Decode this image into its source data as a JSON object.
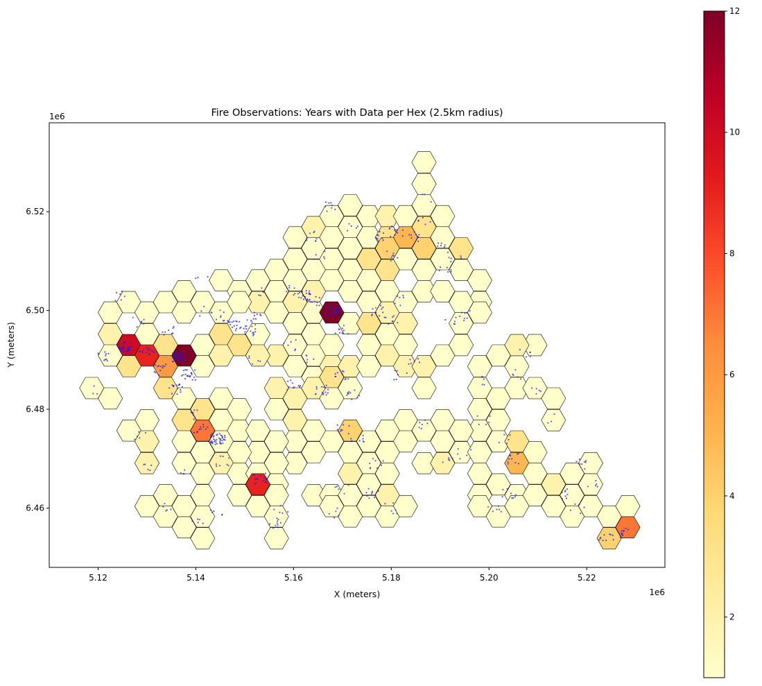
{
  "chart_data": {
    "type": "heatmap",
    "subtype": "hexbin-map",
    "title": "Fire Observations: Years with Data per Hex (2.5km radius)",
    "xlabel": "X (meters)",
    "ylabel": "Y (meters)",
    "x_offset_label": "1e6",
    "y_offset_label": "1e6",
    "xlim": [
      5.11,
      5.236
    ],
    "ylim": [
      6.448,
      6.538
    ],
    "x_ticks": [
      5.12,
      5.14,
      5.16,
      5.18,
      5.2,
      5.22
    ],
    "x_tick_labels": [
      "5.12",
      "5.14",
      "5.16",
      "5.18",
      "5.20",
      "5.22"
    ],
    "y_ticks": [
      6.46,
      6.48,
      6.5,
      6.52
    ],
    "y_tick_labels": [
      "6.46",
      "6.48",
      "6.50",
      "6.52"
    ],
    "grid": false,
    "hex_radius_km": 2.5,
    "colormap": "YlOrRd",
    "colorbar": {
      "range": [
        1,
        12
      ],
      "ticks": [
        2,
        4,
        6,
        8,
        10,
        12
      ],
      "tick_labels": [
        "2",
        "4",
        "6",
        "8",
        "10",
        "12"
      ]
    },
    "point_color": "#1a1aff",
    "edge_color": "#000000",
    "hexes": [
      [
        5.1867,
        6.53,
        1
      ],
      [
        5.1867,
        6.5256,
        1
      ],
      [
        5.1867,
        6.5213,
        1
      ],
      [
        5.1716,
        6.5213,
        1
      ],
      [
        5.1678,
        6.5191,
        1
      ],
      [
        5.1754,
        6.5191,
        1
      ],
      [
        5.1792,
        6.5191,
        2
      ],
      [
        5.1829,
        6.5191,
        1
      ],
      [
        5.1867,
        6.5169,
        3
      ],
      [
        5.1905,
        6.5191,
        1
      ],
      [
        5.1641,
        6.5169,
        2
      ],
      [
        5.1716,
        6.5169,
        1
      ],
      [
        5.1754,
        6.5148,
        1
      ],
      [
        5.1792,
        6.5148,
        3
      ],
      [
        5.1829,
        6.5148,
        5
      ],
      [
        5.1905,
        6.5148,
        1
      ],
      [
        5.1603,
        6.5148,
        1
      ],
      [
        5.1641,
        6.5126,
        1
      ],
      [
        5.1678,
        6.5148,
        1
      ],
      [
        5.1716,
        6.5126,
        1
      ],
      [
        5.1754,
        6.5104,
        3
      ],
      [
        5.1792,
        6.5126,
        4
      ],
      [
        5.1829,
        6.5104,
        1
      ],
      [
        5.1867,
        6.5126,
        4
      ],
      [
        5.1905,
        6.5104,
        1
      ],
      [
        5.1943,
        6.5126,
        3
      ],
      [
        5.1603,
        6.5104,
        1
      ],
      [
        5.1641,
        6.5082,
        1
      ],
      [
        5.1678,
        6.5104,
        1
      ],
      [
        5.1716,
        6.5082,
        1
      ],
      [
        5.1792,
        6.5082,
        3
      ],
      [
        5.1867,
        6.5082,
        1
      ],
      [
        5.1943,
        6.5082,
        1
      ],
      [
        5.1981,
        6.5061,
        1
      ],
      [
        5.1527,
        6.5061,
        1
      ],
      [
        5.1565,
        6.5082,
        1
      ],
      [
        5.1603,
        6.5061,
        1
      ],
      [
        5.1641,
        6.5039,
        2
      ],
      [
        5.1678,
        6.5061,
        1
      ],
      [
        5.1716,
        6.5039,
        1
      ],
      [
        5.1754,
        6.5061,
        1
      ],
      [
        5.1792,
        6.5039,
        1
      ],
      [
        5.1867,
        6.5039,
        1
      ],
      [
        5.1905,
        6.5039,
        1
      ],
      [
        5.1981,
        6.5017,
        1
      ],
      [
        5.1376,
        6.5039,
        1
      ],
      [
        5.1452,
        6.5061,
        1
      ],
      [
        5.1489,
        6.5039,
        1
      ],
      [
        5.1527,
        6.5017,
        2
      ],
      [
        5.1565,
        6.5039,
        1
      ],
      [
        5.1603,
        6.5017,
        2
      ],
      [
        5.1641,
        6.4996,
        1
      ],
      [
        5.1678,
        6.4996,
        12
      ],
      [
        5.1754,
        6.5017,
        1
      ],
      [
        5.1792,
        6.4996,
        2
      ],
      [
        5.1829,
        6.5017,
        1
      ],
      [
        5.1943,
        6.5017,
        1
      ],
      [
        5.1225,
        6.4996,
        1
      ],
      [
        5.1263,
        6.5017,
        1
      ],
      [
        5.13,
        6.4996,
        1
      ],
      [
        5.1338,
        6.5017,
        1
      ],
      [
        5.1376,
        6.4996,
        1
      ],
      [
        5.1414,
        6.5017,
        1
      ],
      [
        5.1452,
        6.4996,
        1
      ],
      [
        5.1489,
        6.5017,
        1
      ],
      [
        5.1565,
        6.4996,
        1
      ],
      [
        5.1603,
        6.4974,
        1
      ],
      [
        5.1641,
        6.4952,
        1
      ],
      [
        5.1716,
        6.4974,
        1
      ],
      [
        5.1754,
        6.4974,
        3
      ],
      [
        5.1792,
        6.4952,
        1
      ],
      [
        5.1829,
        6.4974,
        2
      ],
      [
        5.1943,
        6.4974,
        1
      ],
      [
        5.1981,
        6.4996,
        1
      ],
      [
        5.1225,
        6.4952,
        2
      ],
      [
        5.1263,
        6.493,
        10
      ],
      [
        5.13,
        6.4952,
        1
      ],
      [
        5.1338,
        6.493,
        3
      ],
      [
        5.1376,
        6.4909,
        12
      ],
      [
        5.1414,
        6.493,
        1
      ],
      [
        5.1452,
        6.4952,
        3
      ],
      [
        5.1489,
        6.493,
        3
      ],
      [
        5.1527,
        6.4952,
        1
      ],
      [
        5.1565,
        6.4909,
        2
      ],
      [
        5.1603,
        6.493,
        1
      ],
      [
        5.1641,
        6.4909,
        1
      ],
      [
        5.1678,
        6.493,
        1
      ],
      [
        5.1754,
        6.493,
        1
      ],
      [
        5.1792,
        6.4909,
        2
      ],
      [
        5.1829,
        6.493,
        1
      ],
      [
        5.1905,
        6.4909,
        1
      ],
      [
        5.1943,
        6.493,
        1
      ],
      [
        5.1225,
        6.4909,
        1
      ],
      [
        5.13,
        6.4909,
        9
      ],
      [
        5.1338,
        6.4887,
        6
      ],
      [
        5.1263,
        6.4887,
        3
      ],
      [
        5.1414,
        6.4887,
        1
      ],
      [
        5.1452,
        6.4909,
        2
      ],
      [
        5.1527,
        6.4909,
        2
      ],
      [
        5.1603,
        6.4887,
        1
      ],
      [
        5.1641,
        6.4865,
        1
      ],
      [
        5.1678,
        6.4887,
        2
      ],
      [
        5.1716,
        6.4887,
        2
      ],
      [
        5.1754,
        6.4887,
        1
      ],
      [
        5.1829,
        6.4887,
        2
      ],
      [
        5.1867,
        6.4887,
        2
      ],
      [
        5.1981,
        6.4887,
        1
      ],
      [
        5.2019,
        6.4909,
        1
      ],
      [
        5.2057,
        6.4887,
        1
      ],
      [
        5.2094,
        6.493,
        1
      ],
      [
        5.2057,
        6.493,
        2
      ],
      [
        5.1187,
        6.4843,
        1
      ],
      [
        5.1225,
        6.4822,
        1
      ],
      [
        5.1338,
        6.4843,
        3
      ],
      [
        5.1376,
        6.4822,
        1
      ],
      [
        5.1565,
        6.4843,
        2
      ],
      [
        5.1603,
        6.4822,
        2
      ],
      [
        5.1641,
        6.4843,
        2
      ],
      [
        5.1678,
        6.4865,
        3
      ],
      [
        5.1716,
        6.4843,
        1
      ],
      [
        5.1867,
        6.4843,
        1
      ],
      [
        5.1981,
        6.4843,
        1
      ],
      [
        5.2057,
        6.4843,
        1
      ],
      [
        5.2094,
        6.4843,
        1
      ],
      [
        5.2132,
        6.4822,
        1
      ],
      [
        5.1376,
        6.4778,
        3
      ],
      [
        5.1414,
        6.48,
        3
      ],
      [
        5.1452,
        6.4822,
        1
      ],
      [
        5.1489,
        6.48,
        1
      ],
      [
        5.1565,
        6.48,
        1
      ],
      [
        5.1678,
        6.4822,
        1
      ],
      [
        5.1603,
        6.4778,
        2
      ],
      [
        5.1829,
        6.4778,
        1
      ],
      [
        5.1905,
        6.4778,
        1
      ],
      [
        5.1981,
        6.48,
        1
      ],
      [
        5.1981,
        6.4757,
        1
      ],
      [
        5.2019,
        6.4822,
        1
      ],
      [
        5.2132,
        6.4778,
        1
      ],
      [
        5.2019,
        6.4778,
        1
      ],
      [
        5.13,
        6.4778,
        1
      ],
      [
        5.1263,
        6.4757,
        1
      ],
      [
        5.1414,
        6.4757,
        7
      ],
      [
        5.1452,
        6.4778,
        1
      ],
      [
        5.1489,
        6.4757,
        1
      ],
      [
        5.1527,
        6.4757,
        1
      ],
      [
        5.1603,
        6.4735,
        1
      ],
      [
        5.1641,
        6.4757,
        1
      ],
      [
        5.1678,
        6.4735,
        1
      ],
      [
        5.1716,
        6.4757,
        4
      ],
      [
        5.1754,
        6.4735,
        1
      ],
      [
        5.1641,
        6.4713,
        1
      ],
      [
        5.1792,
        6.4757,
        1
      ],
      [
        5.1829,
        6.4735,
        1
      ],
      [
        5.1867,
        6.4757,
        1
      ],
      [
        5.1943,
        6.4757,
        1
      ],
      [
        5.13,
        6.4735,
        2
      ],
      [
        5.1376,
        6.4735,
        1
      ],
      [
        5.1452,
        6.4735,
        1
      ],
      [
        5.1527,
        6.4713,
        1
      ],
      [
        5.1565,
        6.4735,
        1
      ],
      [
        5.1603,
        6.4691,
        1
      ],
      [
        5.1565,
        6.4691,
        1
      ],
      [
        5.1489,
        6.4713,
        1
      ],
      [
        5.1414,
        6.4713,
        1
      ],
      [
        5.1376,
        6.4691,
        1
      ],
      [
        5.1452,
        6.4691,
        2
      ],
      [
        5.1716,
        6.4713,
        1
      ],
      [
        5.1754,
        6.4691,
        1
      ],
      [
        5.1792,
        6.4713,
        1
      ],
      [
        5.1905,
        6.4735,
        1
      ],
      [
        5.1943,
        6.4713,
        1
      ],
      [
        5.1981,
        6.4713,
        1
      ],
      [
        5.2019,
        6.4735,
        1
      ],
      [
        5.2057,
        6.4735,
        3
      ],
      [
        5.2094,
        6.4713,
        1
      ],
      [
        5.13,
        6.4691,
        2
      ],
      [
        5.1414,
        6.467,
        1
      ],
      [
        5.1489,
        6.467,
        1
      ],
      [
        5.1527,
        6.467,
        1
      ],
      [
        5.1565,
        6.4648,
        1
      ],
      [
        5.1527,
        6.4648,
        9
      ],
      [
        5.1716,
        6.467,
        2
      ],
      [
        5.1792,
        6.467,
        1
      ],
      [
        5.1867,
        6.4691,
        1
      ],
      [
        5.1905,
        6.4691,
        2
      ],
      [
        5.1981,
        6.467,
        1
      ],
      [
        5.2019,
        6.4648,
        1
      ],
      [
        5.2057,
        6.4691,
        5
      ],
      [
        5.2094,
        6.467,
        1
      ],
      [
        5.217,
        6.467,
        1
      ],
      [
        5.2208,
        6.4691,
        1
      ],
      [
        5.1338,
        6.4626,
        1
      ],
      [
        5.1414,
        6.4626,
        1
      ],
      [
        5.1489,
        6.4626,
        1
      ],
      [
        5.1565,
        6.4626,
        1
      ],
      [
        5.1641,
        6.4626,
        1
      ],
      [
        5.1678,
        6.4626,
        1
      ],
      [
        5.1716,
        6.4626,
        1
      ],
      [
        5.1754,
        6.4648,
        1
      ],
      [
        5.1792,
        6.4626,
        2
      ],
      [
        5.1981,
        6.4626,
        1
      ],
      [
        5.2057,
        6.4626,
        1
      ],
      [
        5.2094,
        6.4626,
        1
      ],
      [
        5.2132,
        6.4648,
        2
      ],
      [
        5.217,
        6.4626,
        1
      ],
      [
        5.2208,
        6.4648,
        1
      ],
      [
        5.13,
        6.4604,
        1
      ],
      [
        5.1338,
        6.4583,
        1
      ],
      [
        5.1376,
        6.4604,
        1
      ],
      [
        5.1414,
        6.4583,
        1
      ],
      [
        5.1527,
        6.4604,
        1
      ],
      [
        5.1565,
        6.4583,
        1
      ],
      [
        5.1678,
        6.4604,
        1
      ],
      [
        5.1716,
        6.4583,
        1
      ],
      [
        5.1754,
        6.4604,
        1
      ],
      [
        5.1792,
        6.4583,
        1
      ],
      [
        5.1829,
        6.4604,
        1
      ],
      [
        5.1981,
        6.4604,
        1
      ],
      [
        5.2019,
        6.4583,
        1
      ],
      [
        5.2057,
        6.4604,
        1
      ],
      [
        5.2132,
        6.4604,
        1
      ],
      [
        5.217,
        6.4583,
        1
      ],
      [
        5.2208,
        6.4604,
        1
      ],
      [
        5.2246,
        6.4583,
        1
      ],
      [
        5.2284,
        6.4604,
        1
      ],
      [
        5.1376,
        6.4561,
        1
      ],
      [
        5.1414,
        6.4539,
        1
      ],
      [
        5.1565,
        6.4539,
        1
      ],
      [
        5.2246,
        6.4539,
        4
      ],
      [
        5.2284,
        6.4561,
        7
      ]
    ],
    "point_clusters": [
      [
        5.121,
        6.4905,
        10
      ],
      [
        5.1255,
        6.4927,
        25
      ],
      [
        5.13,
        6.4915,
        15
      ],
      [
        5.133,
        6.488,
        12
      ],
      [
        5.1365,
        6.4905,
        30
      ],
      [
        5.1385,
        6.487,
        20
      ],
      [
        5.136,
        6.484,
        15
      ],
      [
        5.1345,
        6.496,
        8
      ],
      [
        5.1245,
        6.503,
        6
      ],
      [
        5.1285,
        6.4975,
        6
      ],
      [
        5.141,
        6.476,
        10
      ],
      [
        5.1445,
        6.474,
        40
      ],
      [
        5.1455,
        6.4695,
        8
      ],
      [
        5.1395,
        6.479,
        6
      ],
      [
        5.138,
        6.467,
        5
      ],
      [
        5.153,
        6.466,
        15
      ],
      [
        5.156,
        6.457,
        10
      ],
      [
        5.1575,
        6.46,
        5
      ],
      [
        5.1455,
        6.499,
        8
      ],
      [
        5.148,
        6.497,
        15
      ],
      [
        5.151,
        6.496,
        15
      ],
      [
        5.152,
        6.4985,
        10
      ],
      [
        5.159,
        6.493,
        6
      ],
      [
        5.162,
        6.503,
        15
      ],
      [
        5.164,
        6.502,
        12
      ],
      [
        5.159,
        6.504,
        6
      ],
      [
        5.168,
        6.5,
        25
      ],
      [
        5.17,
        6.496,
        10
      ],
      [
        5.164,
        6.49,
        5
      ],
      [
        5.17,
        6.487,
        10
      ],
      [
        5.166,
        6.484,
        15
      ],
      [
        5.16,
        6.485,
        10
      ],
      [
        5.172,
        6.483,
        10
      ],
      [
        5.177,
        6.5,
        10
      ],
      [
        5.18,
        6.498,
        8
      ],
      [
        5.185,
        6.49,
        6
      ],
      [
        5.182,
        6.487,
        6
      ],
      [
        5.181,
        6.502,
        6
      ],
      [
        5.177,
        6.515,
        10
      ],
      [
        5.181,
        6.516,
        12
      ],
      [
        5.185,
        6.515,
        10
      ],
      [
        5.187,
        6.518,
        6
      ],
      [
        5.18,
        6.511,
        8
      ],
      [
        5.19,
        6.513,
        6
      ],
      [
        5.193,
        6.511,
        6
      ],
      [
        5.191,
        6.508,
        6
      ],
      [
        5.168,
        6.521,
        8
      ],
      [
        5.164,
        6.515,
        8
      ],
      [
        5.165,
        6.511,
        6
      ],
      [
        5.172,
        6.517,
        5
      ],
      [
        5.187,
        6.523,
        3
      ],
      [
        5.186,
        6.477,
        6
      ],
      [
        5.17,
        6.476,
        8
      ],
      [
        5.173,
        6.474,
        8
      ],
      [
        5.177,
        6.469,
        8
      ],
      [
        5.17,
        6.464,
        5
      ],
      [
        5.176,
        6.463,
        10
      ],
      [
        5.18,
        6.46,
        6
      ],
      [
        5.168,
        6.459,
        5
      ],
      [
        5.195,
        6.499,
        8
      ],
      [
        5.192,
        6.498,
        5
      ],
      [
        5.2,
        6.486,
        5
      ],
      [
        5.199,
        6.478,
        5
      ],
      [
        5.195,
        6.471,
        5
      ],
      [
        5.192,
        6.47,
        5
      ],
      [
        5.205,
        6.47,
        10
      ],
      [
        5.203,
        6.474,
        5
      ],
      [
        5.207,
        6.491,
        5
      ],
      [
        5.206,
        6.487,
        5
      ],
      [
        5.21,
        6.484,
        5
      ],
      [
        5.213,
        6.478,
        3
      ],
      [
        5.204,
        6.463,
        8
      ],
      [
        5.201,
        6.46,
        6
      ],
      [
        5.215,
        6.463,
        8
      ],
      [
        5.219,
        6.469,
        8
      ],
      [
        5.221,
        6.465,
        5
      ],
      [
        5.218,
        6.46,
        5
      ],
      [
        5.224,
        6.454,
        10
      ],
      [
        5.227,
        6.455,
        10
      ],
      [
        5.13,
        6.468,
        5
      ],
      [
        5.129,
        6.475,
        5
      ],
      [
        5.134,
        6.46,
        5
      ],
      [
        5.14,
        6.458,
        5
      ],
      [
        5.144,
        6.459,
        5
      ],
      [
        5.12,
        6.484,
        3
      ],
      [
        5.142,
        6.5,
        5
      ],
      [
        5.141,
        6.506,
        3
      ],
      [
        5.154,
        6.504,
        4
      ],
      [
        5.152,
        6.49,
        5
      ]
    ]
  }
}
